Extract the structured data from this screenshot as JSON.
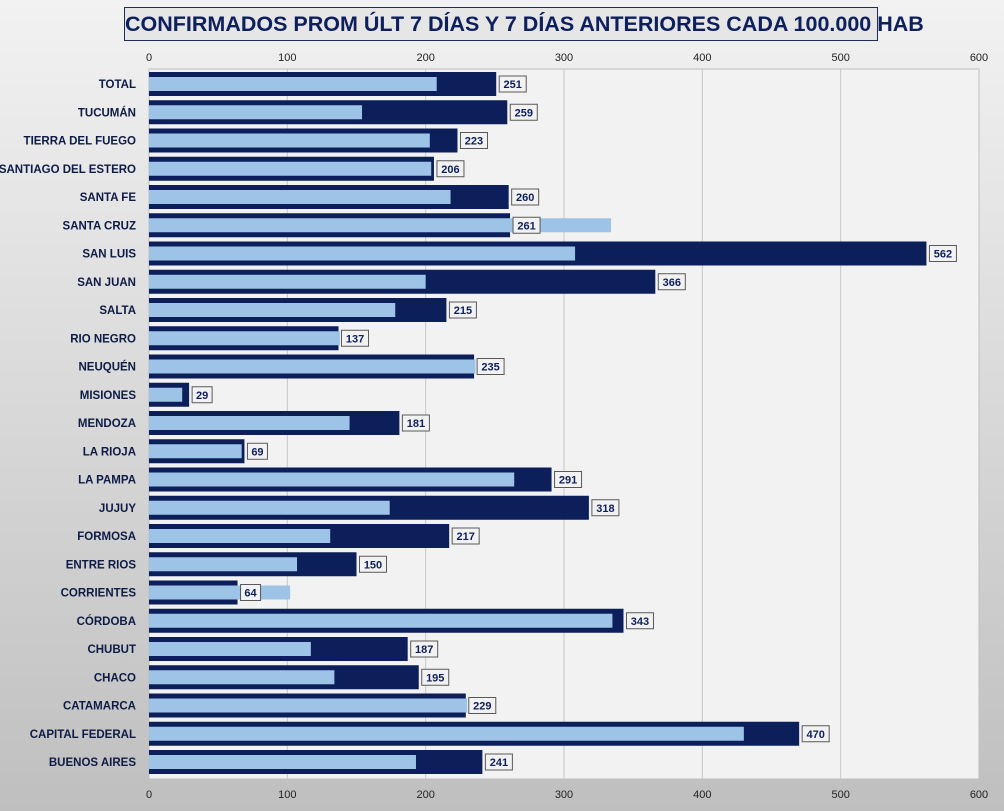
{
  "chart_data": {
    "type": "bar",
    "orientation": "horizontal",
    "title": "CONFIRMADOS PROM ÚLT 7 DÍAS Y 7 DÍAS ANTERIORES CADA 100.000 HAB",
    "xlim": [
      0,
      600
    ],
    "xticks": [
      0,
      100,
      200,
      300,
      400,
      500,
      600
    ],
    "tick_labels": [
      "0",
      "100",
      "200",
      "300",
      "400",
      "500",
      "600"
    ],
    "grid": true,
    "legend": "none",
    "categories": [
      "TOTAL",
      "TUCUMÁN",
      "TIERRA  DEL FUEGO",
      "SANTIAGO  DEL ESTERO",
      "SANTA FE",
      "SANTA CRUZ",
      "SAN LUIS",
      "SAN JUAN",
      "SALTA",
      "RIO NEGRO",
      "NEUQUÉN",
      "MISIONES",
      "MENDOZA",
      "LA RIOJA",
      "LA PAMPA",
      "JUJUY",
      "FORMOSA",
      "ENTRE RIOS",
      "CORRIENTES",
      "CÓRDOBA",
      "CHUBUT",
      "CHACO",
      "CATAMARCA",
      "CAPITAL FEDERAL",
      "BUENOS AIRES"
    ],
    "series": [
      {
        "color": "#0c1f5b",
        "values": [
          251,
          259,
          223,
          206,
          260,
          261,
          562,
          366,
          215,
          137,
          235,
          29,
          181,
          69,
          291,
          318,
          217,
          150,
          64,
          343,
          187,
          195,
          229,
          470,
          241
        ],
        "labels": [
          "251",
          "259",
          "223",
          "206",
          "260",
          "261",
          "562",
          "366",
          "215",
          "137",
          "235",
          "29",
          "181",
          "69",
          "291",
          "318",
          "217",
          "150",
          "64",
          "343",
          "187",
          "195",
          "229",
          "470",
          "241"
        ]
      },
      {
        "color": "#9dc3e6",
        "values": [
          208,
          154,
          203,
          204,
          218,
          334,
          308,
          200,
          178,
          138,
          236,
          24,
          145,
          67,
          264,
          174,
          131,
          107,
          102,
          335,
          117,
          134,
          230,
          430,
          193
        ]
      }
    ]
  }
}
